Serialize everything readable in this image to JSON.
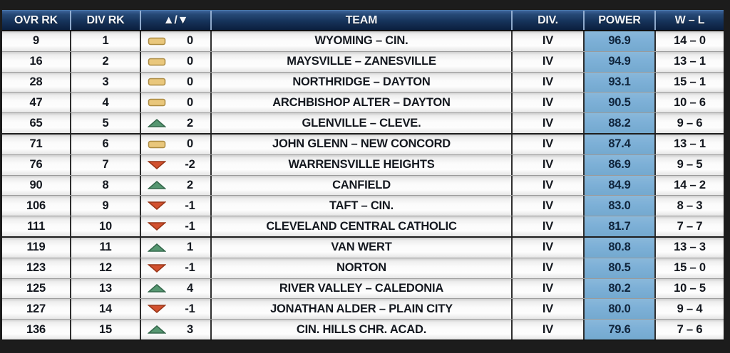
{
  "table": {
    "columns": [
      {
        "label": "OVR RK"
      },
      {
        "label": "DIV RK"
      },
      {
        "label": "▲/▼"
      },
      {
        "label": "TEAM"
      },
      {
        "label": "DIV."
      },
      {
        "label": "POWER"
      },
      {
        "label": "W – L"
      }
    ],
    "rows": [
      {
        "ovr": "9",
        "div_rk": "1",
        "chg_dir": "same",
        "chg": "0",
        "team": "WYOMING – CIN.",
        "div": "IV",
        "power": "96.9",
        "wl": "14 – 0"
      },
      {
        "ovr": "16",
        "div_rk": "2",
        "chg_dir": "same",
        "chg": "0",
        "team": "MAYSVILLE – ZANESVILLE",
        "div": "IV",
        "power": "94.9",
        "wl": "13 – 1"
      },
      {
        "ovr": "28",
        "div_rk": "3",
        "chg_dir": "same",
        "chg": "0",
        "team": "NORTHRIDGE – DAYTON",
        "div": "IV",
        "power": "93.1",
        "wl": "15 – 1"
      },
      {
        "ovr": "47",
        "div_rk": "4",
        "chg_dir": "same",
        "chg": "0",
        "team": "ARCHBISHOP ALTER – DAYTON",
        "div": "IV",
        "power": "90.5",
        "wl": "10 – 6"
      },
      {
        "ovr": "65",
        "div_rk": "5",
        "chg_dir": "up",
        "chg": "2",
        "team": "GLENVILLE – CLEVE.",
        "div": "IV",
        "power": "88.2",
        "wl": "9 – 6"
      },
      {
        "ovr": "71",
        "div_rk": "6",
        "chg_dir": "same",
        "chg": "0",
        "team": "JOHN GLENN – NEW CONCORD",
        "div": "IV",
        "power": "87.4",
        "wl": "13 – 1"
      },
      {
        "ovr": "76",
        "div_rk": "7",
        "chg_dir": "down",
        "chg": "-2",
        "team": "WARRENSVILLE HEIGHTS",
        "div": "IV",
        "power": "86.9",
        "wl": "9 – 5"
      },
      {
        "ovr": "90",
        "div_rk": "8",
        "chg_dir": "up",
        "chg": "2",
        "team": "CANFIELD",
        "div": "IV",
        "power": "84.9",
        "wl": "14 – 2"
      },
      {
        "ovr": "106",
        "div_rk": "9",
        "chg_dir": "down",
        "chg": "-1",
        "team": "TAFT – CIN.",
        "div": "IV",
        "power": "83.0",
        "wl": "8 – 3"
      },
      {
        "ovr": "111",
        "div_rk": "10",
        "chg_dir": "down",
        "chg": "-1",
        "team": "CLEVELAND CENTRAL CATHOLIC",
        "div": "IV",
        "power": "81.7",
        "wl": "7 – 7"
      },
      {
        "ovr": "119",
        "div_rk": "11",
        "chg_dir": "up",
        "chg": "1",
        "team": "VAN WERT",
        "div": "IV",
        "power": "80.8",
        "wl": "13 – 3"
      },
      {
        "ovr": "123",
        "div_rk": "12",
        "chg_dir": "down",
        "chg": "-1",
        "team": "NORTON",
        "div": "IV",
        "power": "80.5",
        "wl": "15 – 0"
      },
      {
        "ovr": "125",
        "div_rk": "13",
        "chg_dir": "up",
        "chg": "4",
        "team": "RIVER VALLEY – CALEDONIA",
        "div": "IV",
        "power": "80.2",
        "wl": "10 – 5"
      },
      {
        "ovr": "127",
        "div_rk": "14",
        "chg_dir": "down",
        "chg": "-1",
        "team": "JONATHAN ALDER – PLAIN CITY",
        "div": "IV",
        "power": "80.0",
        "wl": "9 – 4"
      },
      {
        "ovr": "136",
        "div_rk": "15",
        "chg_dir": "up",
        "chg": "3",
        "team": "CIN. HILLS CHR. ACAD.",
        "div": "IV",
        "power": "79.6",
        "wl": "7 – 6"
      }
    ]
  },
  "colors": {
    "power_cell": "#7db0d7",
    "up_fill": "#569771",
    "up_stroke": "#35684c",
    "down_fill": "#d2512f",
    "down_stroke": "#993618",
    "same_fill": "#e9c77c",
    "same_stroke": "#ab8a41"
  }
}
